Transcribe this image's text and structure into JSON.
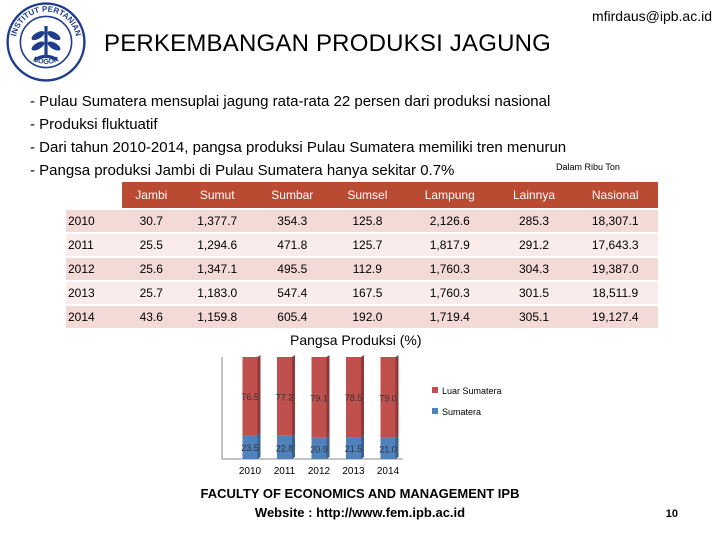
{
  "header": {
    "email": "mfirdaus@ipb.ac.id",
    "title": "PERKEMBANGAN PRODUKSI JAGUNG",
    "logo": {
      "icon": "university-seal-icon",
      "ring_text_top": "INSTITUT PERTANIAN",
      "ring_text_bottom": "BOGOR",
      "color": "#1f3d8c"
    }
  },
  "bullets": [
    "- Pulau Sumatera mensuplai jagung rata-rata 22 persen dari produksi nasional",
    "- Produksi fluktuatif",
    "- Dari tahun 2010-2014, pangsa produksi Pulau Sumatera memiliki tren menurun",
    "- Pangsa produksi Jambi di Pulau Sumatera hanya sekitar 0.7%"
  ],
  "unit_note": "Dalam Ribu Ton",
  "table": {
    "columns": [
      "Jambi",
      "Sumut",
      "Sumbar",
      "Sumsel",
      "Lampung",
      "Lainnya",
      "Nasional"
    ],
    "rows": [
      {
        "year": "2010",
        "values": [
          "30.7",
          "1,377.7",
          "354.3",
          "125.8",
          "2,126.6",
          "285.3",
          "18,307.1"
        ]
      },
      {
        "year": "2011",
        "values": [
          "25.5",
          "1,294.6",
          "471.8",
          "125.7",
          "1,817.9",
          "291.2",
          "17,643.3"
        ]
      },
      {
        "year": "2012",
        "values": [
          "25.6",
          "1,347.1",
          "495.5",
          "112.9",
          "1,760.3",
          "304.3",
          "19,387.0"
        ]
      },
      {
        "year": "2013",
        "values": [
          "25.7",
          "1,183.0",
          "547.4",
          "167.5",
          "1,760.3",
          "301.5",
          "18,511.9"
        ]
      },
      {
        "year": "2014",
        "values": [
          "43.6",
          "1,159.8",
          "605.4",
          "192.0",
          "1,719.4",
          "305.1",
          "19,127.4"
        ]
      }
    ]
  },
  "chart_data": {
    "type": "bar",
    "stacked": true,
    "percent_stacked": true,
    "title": "Pangsa Produksi (%)",
    "categories": [
      "2010",
      "2011",
      "2012",
      "2013",
      "2014"
    ],
    "series": [
      {
        "name": "Sumatera",
        "values": [
          23.5,
          22.8,
          20.9,
          21.5,
          21.0
        ],
        "labels": [
          "23.5",
          "22.8",
          "20.9",
          "21.5",
          "21.0"
        ],
        "color": "#4f81bd"
      },
      {
        "name": "Luar Sumatera",
        "values": [
          76.5,
          77.2,
          79.1,
          78.5,
          79.0
        ],
        "labels": [
          "76.5",
          "77.2",
          "79.1",
          "78.5",
          "79.0"
        ],
        "color": "#c0504d"
      }
    ],
    "ylim": [
      0,
      100
    ],
    "legend_position": "right"
  },
  "footer": {
    "line1": "FACULTY OF ECONOMICS AND MANAGEMENT IPB",
    "line2": "Website : http://www.fem.ipb.ac.id",
    "page_number": "10"
  }
}
